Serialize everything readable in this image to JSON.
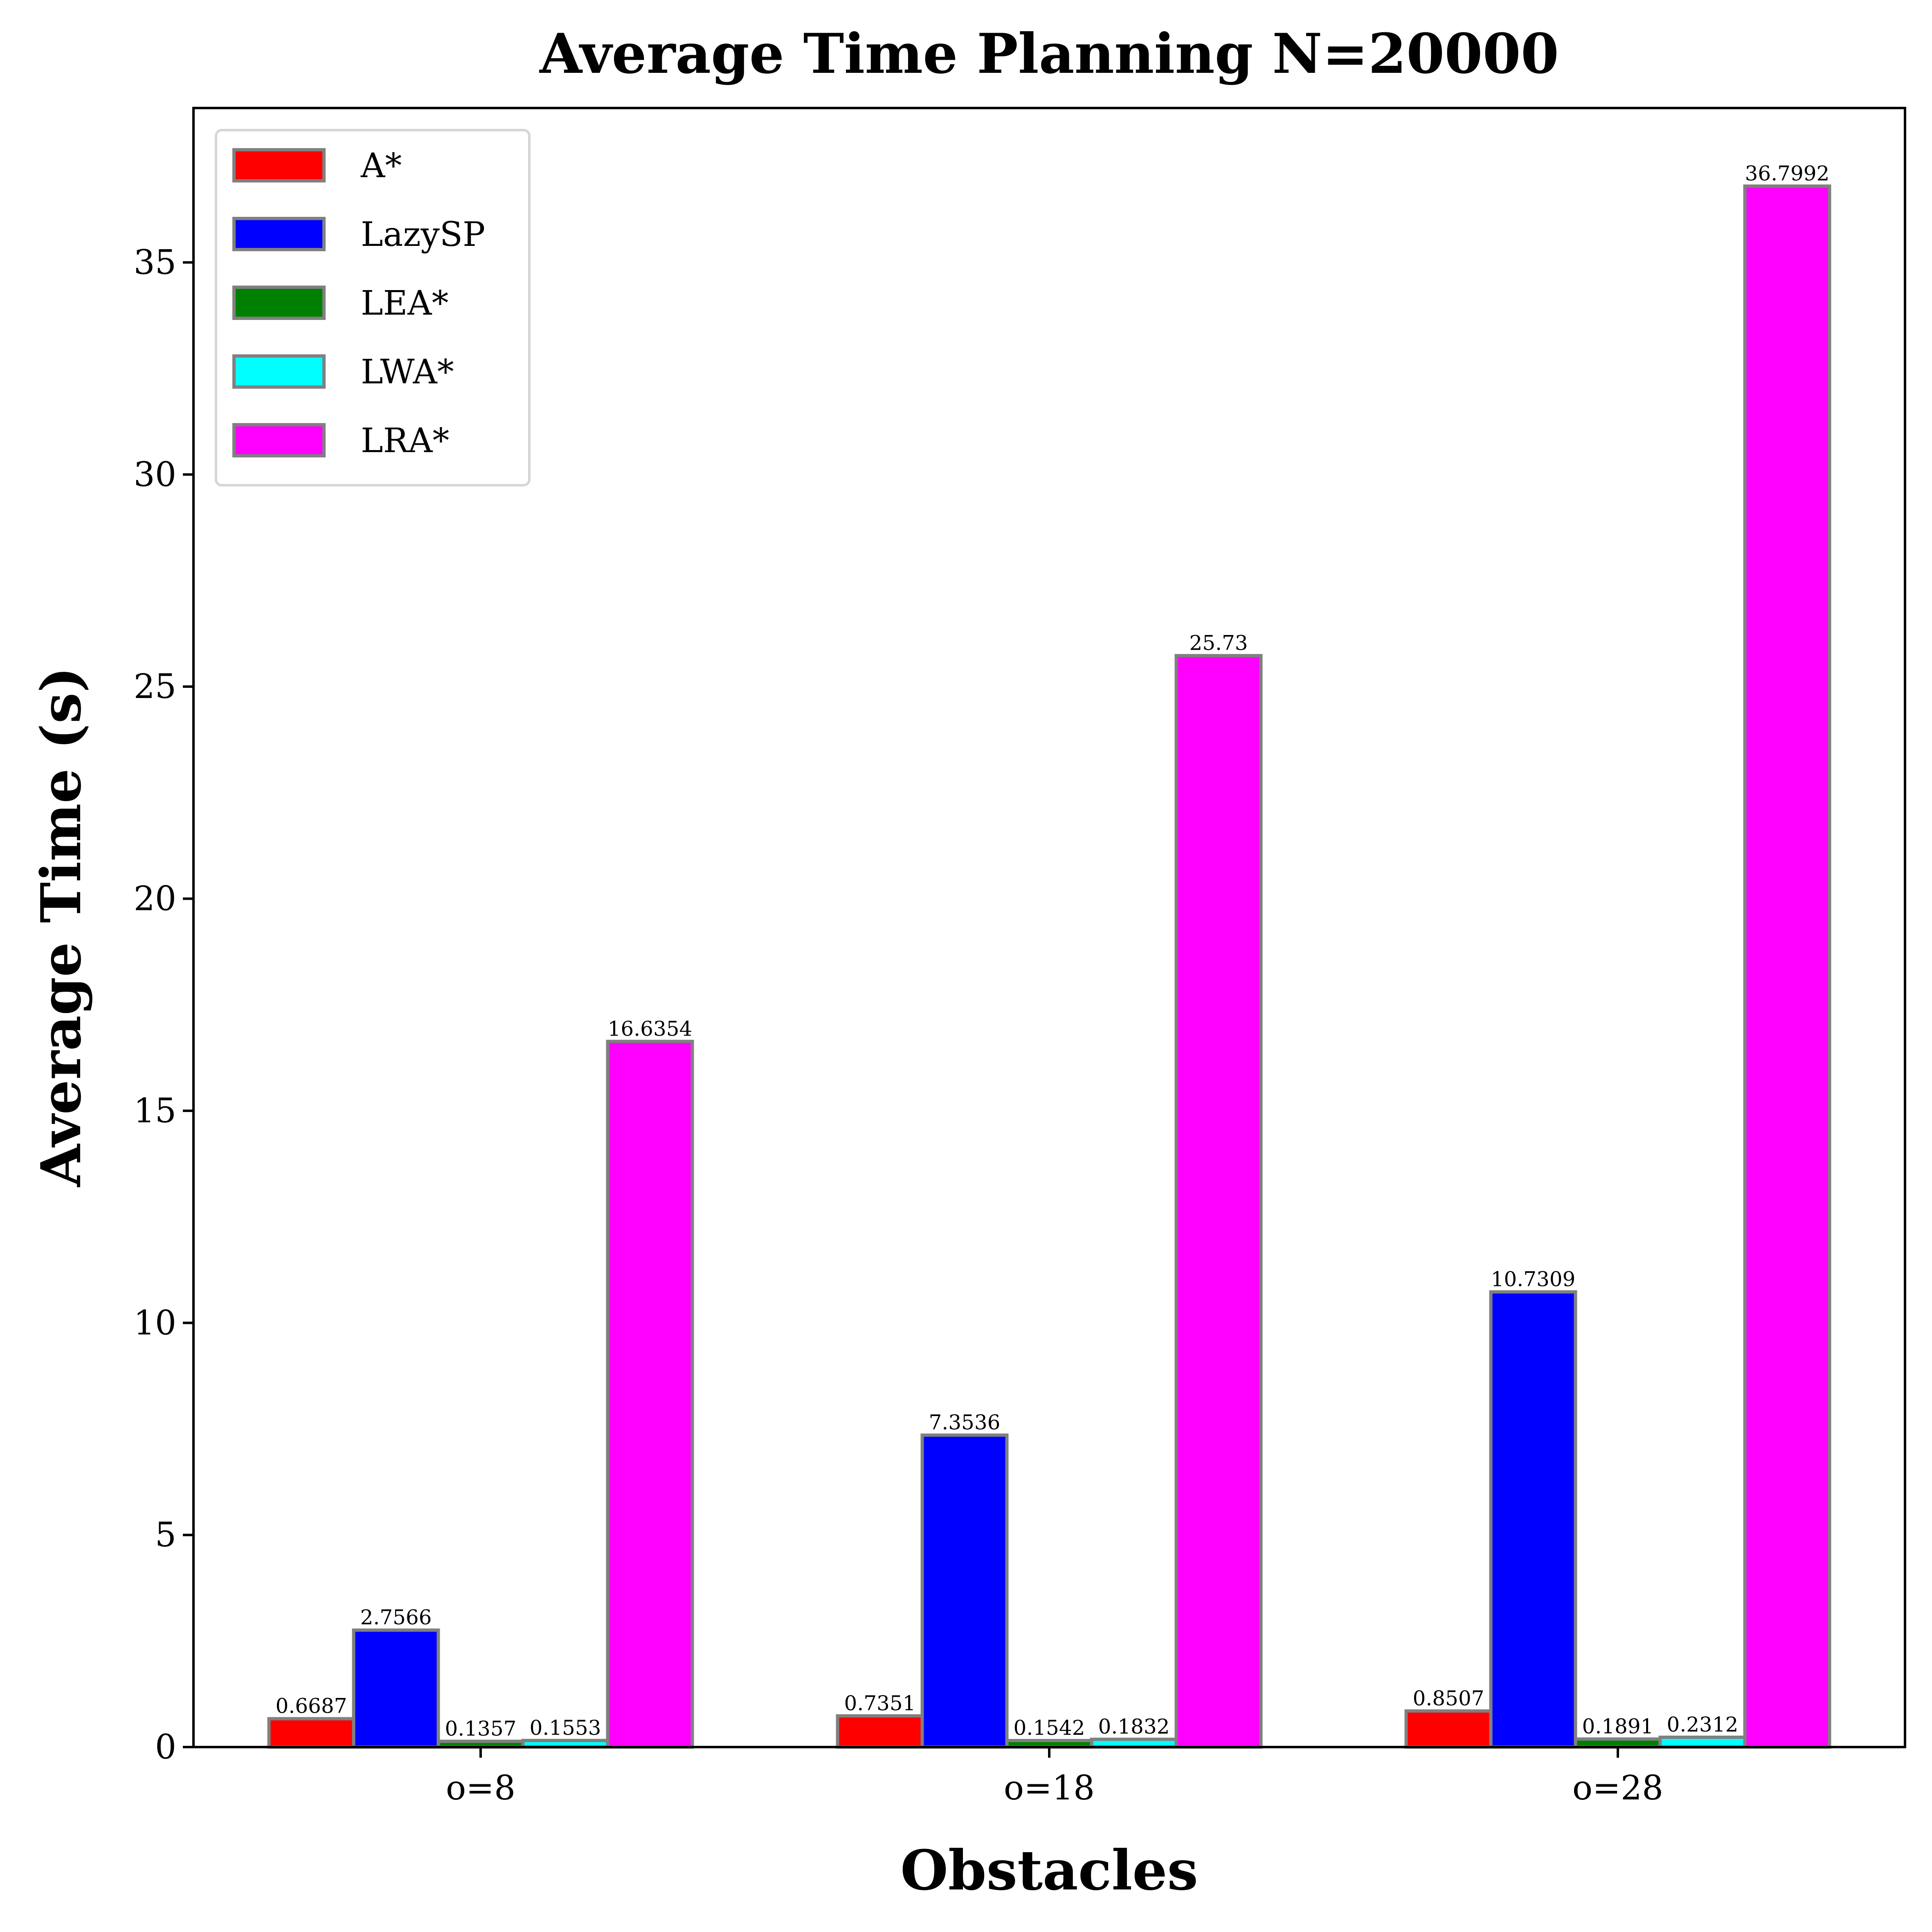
{
  "chart_data": {
    "type": "bar",
    "title": "Average Time Planning N=20000",
    "xlabel": "Obstacles",
    "ylabel": "Average Time (s)",
    "categories": [
      "o=8",
      "o=18",
      "o=28"
    ],
    "ylim": [
      0,
      38.64
    ],
    "yticks": [
      0,
      5,
      10,
      15,
      20,
      25,
      30,
      35
    ],
    "grid": false,
    "legend_position": "top-left",
    "bar_edge_color": "#808080",
    "series": [
      {
        "name": "A*",
        "color": "#ff0000",
        "values": [
          0.6687,
          0.7351,
          0.8507
        ],
        "labels": [
          "0.6687",
          "0.7351",
          "0.8507"
        ]
      },
      {
        "name": "LazySP",
        "color": "#0000ff",
        "values": [
          2.7566,
          7.3536,
          10.7309
        ],
        "labels": [
          "2.7566",
          "7.3536",
          "10.7309"
        ]
      },
      {
        "name": "LEA*",
        "color": "#008000",
        "values": [
          0.1357,
          0.1542,
          0.1891
        ],
        "labels": [
          "0.1357",
          "0.1542",
          "0.1891"
        ]
      },
      {
        "name": "LWA*",
        "color": "#00ffff",
        "values": [
          0.1553,
          0.1832,
          0.2312
        ],
        "labels": [
          "0.1553",
          "0.1832",
          "0.2312"
        ]
      },
      {
        "name": "LRA*",
        "color": "#ff00ff",
        "values": [
          16.6354,
          25.73,
          36.7992
        ],
        "labels": [
          "16.6354",
          "25.73",
          "36.7992"
        ]
      }
    ]
  }
}
